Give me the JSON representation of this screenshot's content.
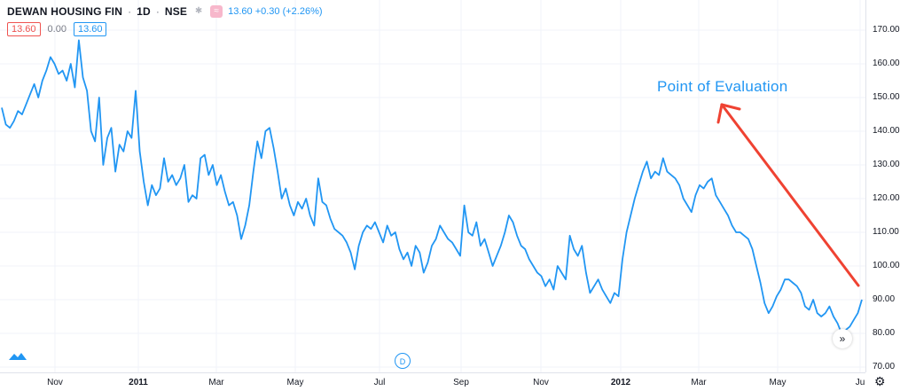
{
  "header": {
    "symbol": "DEWAN HOUSING FIN",
    "interval": "1D",
    "exchange": "NSE",
    "quote": "13.60 +0.30 (+2.26%)"
  },
  "legend_values": {
    "red": "13.60",
    "zero": "0.00",
    "blue": "13.60"
  },
  "annotation": {
    "text": "Point of Evaluation"
  },
  "buttons": {
    "d_label": "D",
    "scroll_label": "»"
  },
  "colors": {
    "line": "#2196f3",
    "arrow": "#ef4232",
    "grid": "#f0f3fa"
  },
  "chart_data": {
    "type": "line",
    "title": "",
    "ylim": [
      70,
      175
    ],
    "yticks": [
      "170.00",
      "160.00",
      "150.00",
      "140.00",
      "130.00",
      "120.00",
      "110.00",
      "100.00",
      "90.00",
      "80.00",
      "70.00"
    ],
    "xtick_labels": [
      "Nov",
      "2011",
      "Mar",
      "May",
      "Jul",
      "Sep",
      "Nov",
      "2012",
      "Mar",
      "May",
      "Ju"
    ],
    "grid": true,
    "series": [
      {
        "values": [
          147,
          142,
          141,
          143,
          146,
          145,
          148,
          151,
          154,
          150,
          155,
          158,
          162,
          160,
          157,
          158,
          155,
          160,
          153,
          167,
          156,
          152,
          140,
          137,
          150,
          130,
          138,
          141,
          128,
          136,
          134,
          140,
          138,
          152,
          134,
          125,
          118,
          124,
          121,
          123,
          132,
          125,
          127,
          124,
          126,
          130,
          119,
          121,
          120,
          132,
          133,
          127,
          130,
          124,
          127,
          122,
          118,
          119,
          115,
          108,
          112,
          118,
          128,
          137,
          132,
          140,
          141,
          135,
          128,
          120,
          123,
          118,
          115,
          119,
          117,
          120,
          115,
          112,
          126,
          119,
          118,
          114,
          111,
          110,
          109,
          107,
          104,
          99,
          106,
          110,
          112,
          111,
          113,
          110,
          107,
          112,
          109,
          110,
          105,
          102,
          104,
          100,
          106,
          104,
          98,
          101,
          106,
          108,
          112,
          110,
          108,
          107,
          105,
          103,
          118,
          110,
          109,
          113,
          106,
          108,
          104,
          100,
          103,
          106,
          110,
          115,
          113,
          109,
          106,
          105,
          102,
          100,
          98,
          97,
          94,
          96,
          93,
          100,
          98,
          96,
          109,
          105,
          103,
          106,
          98,
          92,
          94,
          96,
          93,
          91,
          89,
          92,
          91,
          102,
          110,
          115,
          120,
          124,
          128,
          131,
          126,
          128,
          127,
          132,
          128,
          127,
          126,
          124,
          120,
          118,
          116,
          121,
          124,
          123,
          125,
          126,
          121,
          119,
          117,
          115,
          112,
          110,
          110,
          109,
          108,
          105,
          100,
          95,
          89,
          86,
          88,
          91,
          93,
          96,
          96,
          95,
          94,
          92,
          88,
          87,
          90,
          86,
          85,
          86,
          88,
          85,
          83,
          80,
          81,
          82,
          84,
          86,
          90
        ]
      }
    ]
  }
}
